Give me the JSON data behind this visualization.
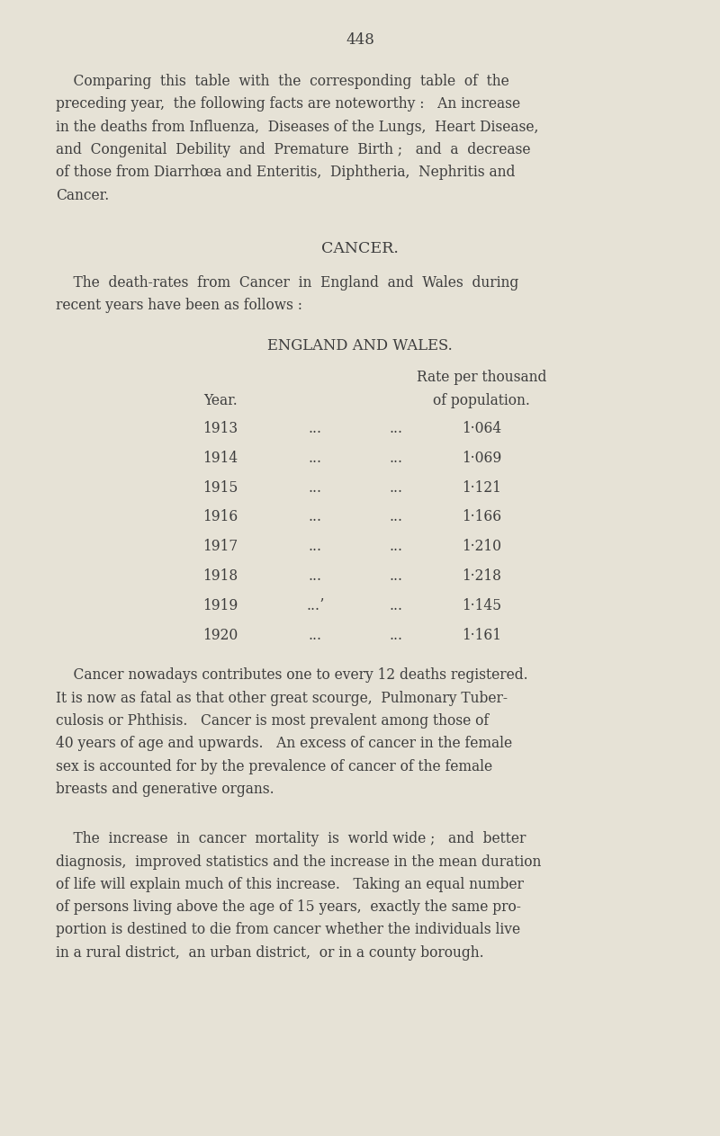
{
  "page_number": "448",
  "background_color": "#e6e2d6",
  "text_color": "#3d3d3d",
  "page_width": 8.0,
  "page_height": 12.63,
  "para1_lines": [
    "    Comparing  this  table  with  the  corresponding  table  of  the",
    "preceding year,  the following facts are noteworthy :   An increase",
    "in the deaths from Influenza,  Diseases of the Lungs,  Heart Disease,",
    "and  Congenital  Debility  and  Premature  Birth ;   and  a  decrease",
    "of those from Diarrhœa and Enteritis,  Diphtheria,  Nephritis and",
    "Cancer."
  ],
  "section_title": "Cancer.",
  "para2_lines": [
    "    The  death-rates  from  Cancer  in  England  and  Wales  during",
    "recent years have been as follows :"
  ],
  "table_title": "England and Wales.",
  "table_col1_header": "Year.",
  "table_rate_header1": "Rate per thousand",
  "table_rate_header2": "of population.",
  "table_data": [
    {
      "year": "1913",
      "dots1": "...",
      "dots2": "...",
      "rate": "1·064"
    },
    {
      "year": "1914",
      "dots1": "...",
      "dots2": "...",
      "rate": "1·069"
    },
    {
      "year": "1915",
      "dots1": "...",
      "dots2": "...",
      "rate": "1·121"
    },
    {
      "year": "1916",
      "dots1": "...",
      "dots2": "...",
      "rate": "1·166"
    },
    {
      "year": "1917",
      "dots1": "...",
      "dots2": "...",
      "rate": "1·210"
    },
    {
      "year": "1918",
      "dots1": "...",
      "dots2": "...",
      "rate": "1·218"
    },
    {
      "year": "1919",
      "dots1": "...ʼ",
      "dots2": "...",
      "rate": "1·145"
    },
    {
      "year": "1920",
      "dots1": "...",
      "dots2": "...",
      "rate": "1·161"
    }
  ],
  "para3_lines": [
    "    Cancer nowadays contributes one to every 12 deaths registered.",
    "It is now as fatal as that other great scourge,  Pulmonary Tuber-",
    "culosis or Phthisis.   Cancer is most prevalent among those of",
    "40 years of age and upwards.   An excess of cancer in the female",
    "sex is accounted for by the prevalence of cancer of the female",
    "breasts and generative organs."
  ],
  "para4_lines": [
    "    The  increase  in  cancer  mortality  is  world wide ;   and  better",
    "diagnosis,  improved statistics and the increase in the mean duration",
    "of life will explain much of this increase.   Taking an equal number",
    "of persons living above the age of 15 years,  exactly the same pro-",
    "portion is destined to die from cancer whether the individuals live",
    "in a rural district,  an urban district,  or in a county borough."
  ]
}
